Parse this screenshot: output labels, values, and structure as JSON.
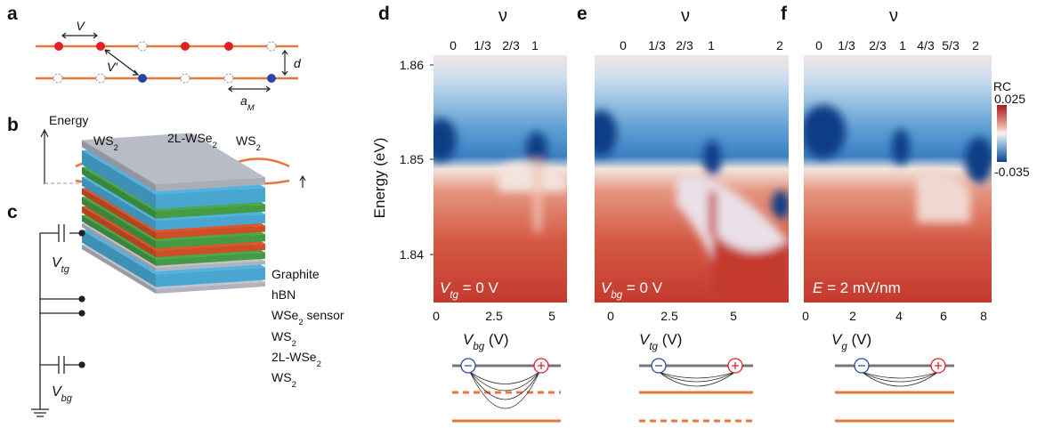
{
  "panel_a": {
    "letter": "a",
    "v": "V",
    "v_prime": "V′",
    "d": "d",
    "a": {
      "main": "a",
      "sub": "M"
    }
  },
  "panel_b": {
    "letter": "b",
    "axis": "Energy",
    "layers": [
      {
        "main": "WS",
        "sub": "2"
      },
      {
        "main": "2L-WSe",
        "sub": "2"
      },
      {
        "main": "WS",
        "sub": "2"
      }
    ]
  },
  "panel_c": {
    "letter": "c",
    "vtg": {
      "main": "V",
      "sub": "tg"
    },
    "vbg": {
      "main": "V",
      "sub": "bg"
    },
    "layers": [
      "Graphite",
      "hBN",
      {
        "main": "WSe",
        "sub": "2",
        "tail": " sensor"
      },
      {
        "main": "WS",
        "sub": "2"
      },
      {
        "main": "2L-WSe",
        "sub": "2"
      },
      {
        "main": "WS",
        "sub": "2"
      }
    ]
  },
  "y_axis": {
    "label": "Energy (eV)",
    "ticks": [
      "1.86",
      "1.85",
      "1.84"
    ]
  },
  "maps": [
    {
      "letter": "d",
      "top_label": "ν",
      "top_ticks": [
        "0",
        "1/3",
        "2/3",
        "1"
      ],
      "x_ticks": [
        "0",
        "2.5",
        "5"
      ],
      "x_label": {
        "main": "V",
        "sub": "bg",
        "tail": " (V)"
      },
      "annotation": {
        "main": "V",
        "sub": "tg",
        "tail": " = 0 V"
      }
    },
    {
      "letter": "e",
      "top_label": "ν",
      "top_ticks": [
        "0",
        "1/3",
        "2/3",
        "1",
        "2"
      ],
      "x_ticks": [
        "0",
        "2.5",
        "5"
      ],
      "x_label": {
        "main": "V",
        "sub": "tg",
        "tail": " (V)"
      },
      "annotation": {
        "main": "V",
        "sub": "bg",
        "tail": " = 0 V"
      }
    },
    {
      "letter": "f",
      "top_label": "ν",
      "top_ticks": [
        "0",
        "1/3",
        "2/3",
        "1",
        "4/3",
        "5/3",
        "2"
      ],
      "x_ticks": [
        "0",
        "2",
        "4",
        "6",
        "8"
      ],
      "x_label": {
        "main": "V",
        "sub": "g",
        "tail": " (V)"
      },
      "annotation": {
        "main": "E",
        "tail": " = 2 mV/nm"
      }
    }
  ],
  "colorbar": {
    "label": "RC",
    "max": "0.025",
    "min": "-0.035"
  }
}
